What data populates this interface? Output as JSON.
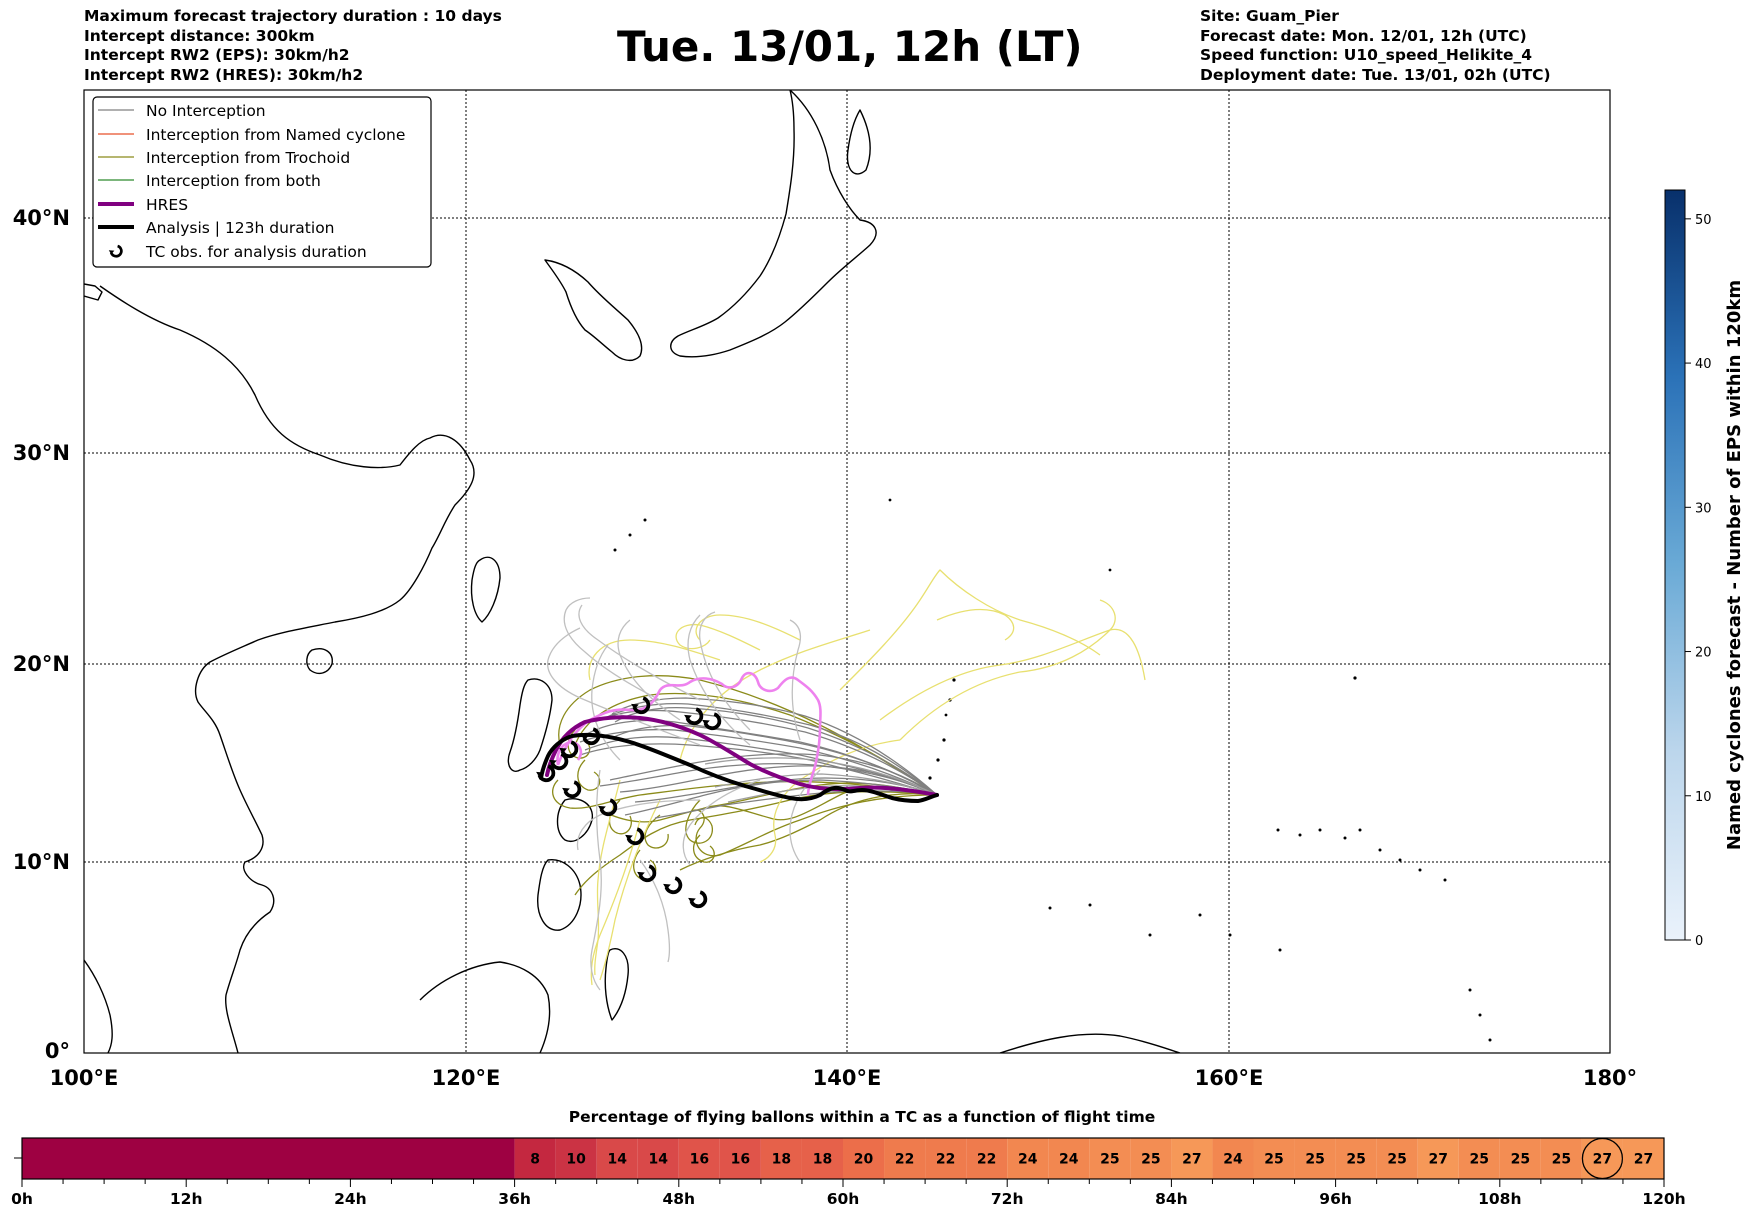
{
  "header": {
    "left_lines": [
      "Maximum forecast trajectory duration : 10 days",
      "Intercept distance: 300km",
      "Intercept RW2 (EPS):  30km/h2",
      "Intercept RW2 (HRES): 30km/h2"
    ],
    "title": "Tue. 13/01, 12h (LT)",
    "right_lines": [
      "Site: Guam_Pier",
      "Forecast date: Mon. 12/01, 12h (UTC)",
      "Speed function: U10_speed_Helikite_4",
      "Deployment date: Tue. 13/01, 02h (UTC)"
    ]
  },
  "map": {
    "lon_ticks": [
      "100°E",
      "120°E",
      "140°E",
      "160°E",
      "180°"
    ],
    "lat_ticks": [
      "0°",
      "10°N",
      "20°N",
      "30°N",
      "40°N"
    ],
    "lon_range": [
      100,
      180
    ],
    "lat_range": [
      0,
      46
    ],
    "site": {
      "name": "Guam_Pier",
      "lon": 144.6,
      "lat": 13.4
    }
  },
  "legend": {
    "items": [
      {
        "label": "No Interception",
        "color": "#808080",
        "style": "thin"
      },
      {
        "label": "Interception from Named cyclone",
        "color": "#e8502a",
        "style": "thin"
      },
      {
        "label": "Interception from Trochoid",
        "color": "#8b8b1a",
        "style": "thin"
      },
      {
        "label": "Interception from both",
        "color": "#2e8b2e",
        "style": "thin"
      },
      {
        "label": "HRES",
        "color": "#800080",
        "style": "thick"
      },
      {
        "label": "Analysis | 123h duration",
        "color": "#000000",
        "style": "thick"
      },
      {
        "label": "TC obs. for analysis duration",
        "color": "#000000",
        "style": "marker"
      }
    ]
  },
  "colorbar": {
    "label": "Named cyclones forecast - Number of EPS within 120km",
    "ticks": [
      "0",
      "10",
      "20",
      "30",
      "40",
      "50"
    ],
    "min": 0,
    "max": 52,
    "color_low": "#eaf2fb",
    "color_high": "#08306b"
  },
  "timeline": {
    "title": "Percentage of flying ballons within a TC as a function of flight time",
    "ticks": [
      "0h",
      "12h",
      "24h",
      "36h",
      "48h",
      "60h",
      "72h",
      "84h",
      "96h",
      "108h",
      "120h"
    ],
    "start_hour": 36,
    "step_hours": 3,
    "values": [
      8,
      10,
      14,
      14,
      16,
      16,
      18,
      18,
      20,
      22,
      22,
      22,
      24,
      24,
      25,
      25,
      27,
      24,
      25,
      25,
      25,
      25,
      27,
      25,
      25,
      25,
      27,
      27
    ],
    "highlight_index": 26,
    "empty_color": "#9e0142"
  }
}
